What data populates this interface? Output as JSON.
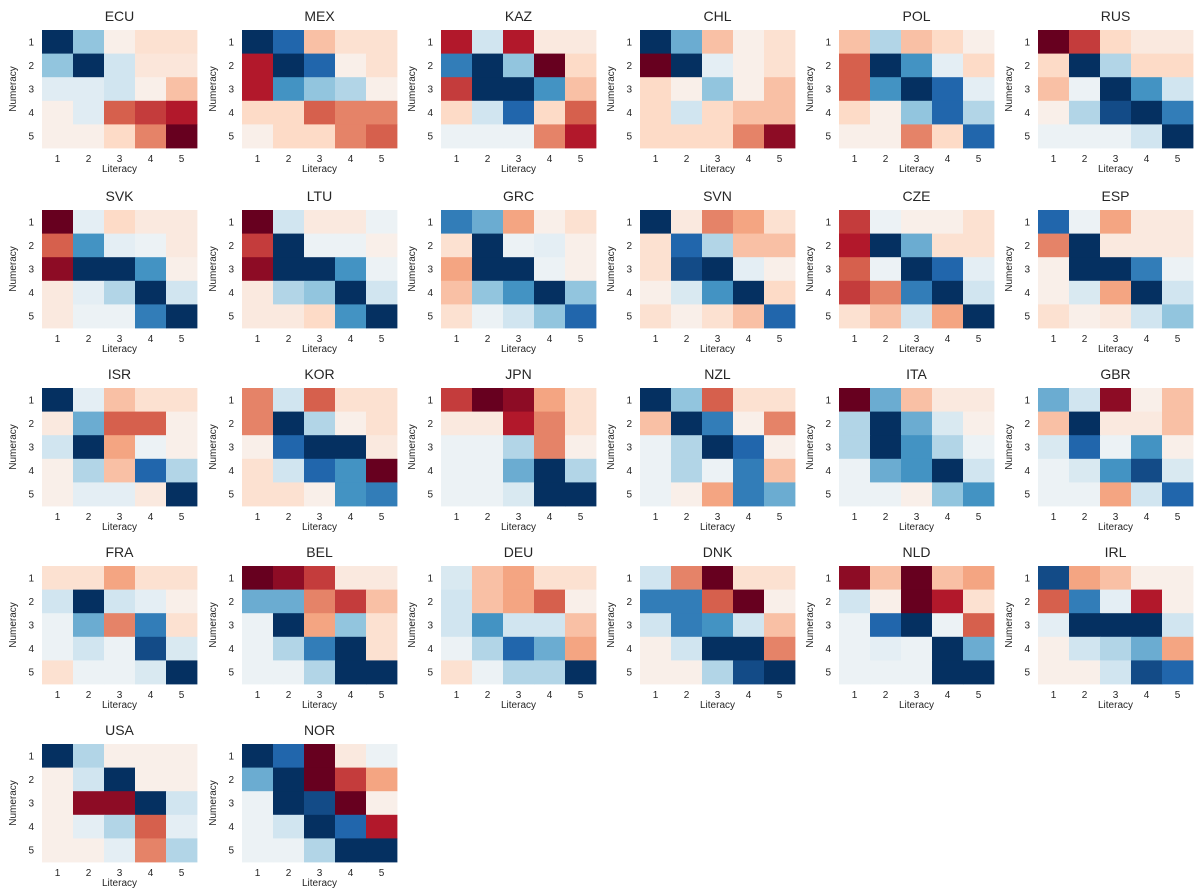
{
  "colors": {
    "colormap": "RdBu_r",
    "ramp": [
      "#67001f",
      "#b2182b",
      "#d6604d",
      "#f4a582",
      "#fddbc7",
      "#f7f7f7",
      "#d1e5f0",
      "#92c5de",
      "#4393c3",
      "#2166ac",
      "#053061"
    ]
  },
  "chart_data": {
    "type": "heatmap",
    "scale": "values on a -5..5 scale; negative = red, positive = blue",
    "xlabel": "Literacy",
    "ylabel": "Numeracy",
    "x_ticks": [
      "1",
      "2",
      "3",
      "4",
      "5"
    ],
    "y_ticks": [
      "1",
      "2",
      "3",
      "4",
      "5"
    ],
    "panels": [
      {
        "title": "ECU",
        "values": [
          [
            5,
            2,
            -0.3,
            -0.8,
            -0.8
          ],
          [
            2,
            5,
            1,
            -0.6,
            -0.6
          ],
          [
            0.6,
            0.6,
            1,
            -0.3,
            -1.5
          ],
          [
            -0.3,
            0.6,
            -3,
            -3.5,
            -4
          ],
          [
            -0.3,
            -0.3,
            -1,
            -2.5,
            -5
          ]
        ]
      },
      {
        "title": "MEX",
        "values": [
          [
            5,
            4,
            -1.5,
            -0.8,
            -0.8
          ],
          [
            -4,
            5,
            4,
            -0.3,
            -0.8
          ],
          [
            -4,
            3,
            2,
            1.5,
            -0.3
          ],
          [
            -1,
            -1,
            -3,
            -2.5,
            -2.5
          ],
          [
            -0.3,
            -1,
            -1,
            -2.5,
            -3
          ]
        ]
      },
      {
        "title": "KAZ",
        "values": [
          [
            -4,
            1,
            -4,
            -0.5,
            -0.5
          ],
          [
            3.5,
            5,
            2,
            -5,
            -1
          ],
          [
            -3.5,
            5,
            5,
            3,
            -1.5
          ],
          [
            -1,
            1,
            4,
            -1,
            -3
          ],
          [
            0.3,
            0.3,
            0.3,
            -2.5,
            -4
          ]
        ]
      },
      {
        "title": "CHL",
        "values": [
          [
            5,
            2.5,
            -1.5,
            -0.3,
            -0.8
          ],
          [
            -5,
            5,
            0.5,
            -0.3,
            -0.8
          ],
          [
            -1,
            -0.3,
            2,
            -0.3,
            -1.5
          ],
          [
            -1,
            1,
            -1,
            -1.5,
            -1.5
          ],
          [
            -1,
            -1,
            -1,
            -2.5,
            -4.5
          ]
        ]
      },
      {
        "title": "POL",
        "values": [
          [
            -1.5,
            1.5,
            -1.5,
            -1,
            -0.3
          ],
          [
            -3,
            5,
            3,
            0.5,
            -1
          ],
          [
            -3,
            3,
            5,
            4,
            0.5
          ],
          [
            -1,
            -0.3,
            2,
            4,
            1.5
          ],
          [
            -0.3,
            -0.3,
            -2.5,
            -1,
            4
          ]
        ]
      },
      {
        "title": "RUS",
        "values": [
          [
            -5,
            -3.5,
            -1,
            -0.5,
            -0.5
          ],
          [
            -1,
            5,
            1.5,
            -1,
            -1
          ],
          [
            -1.5,
            0.3,
            5,
            3,
            1
          ],
          [
            -0.3,
            1.5,
            4.5,
            5,
            3.5
          ],
          [
            0.3,
            0.3,
            0.3,
            1,
            5
          ]
        ]
      },
      {
        "title": "SVK",
        "values": [
          [
            -5,
            0.5,
            -1,
            -0.5,
            -0.5
          ],
          [
            -3,
            3,
            0.5,
            0.3,
            -0.5
          ],
          [
            -4.5,
            5,
            5,
            3,
            -0.3
          ],
          [
            -0.5,
            0.5,
            1.5,
            5,
            1
          ],
          [
            -0.5,
            0.3,
            0.3,
            3.5,
            5
          ]
        ]
      },
      {
        "title": "LTU",
        "values": [
          [
            -5,
            1,
            -0.5,
            -0.5,
            0.3
          ],
          [
            -3.5,
            5,
            0.3,
            0.3,
            -0.3
          ],
          [
            -4.5,
            5,
            5,
            3,
            0.3
          ],
          [
            -0.5,
            1.5,
            2,
            5,
            1
          ],
          [
            -0.5,
            -0.5,
            -1,
            3,
            5
          ]
        ]
      },
      {
        "title": "GRC",
        "values": [
          [
            3.5,
            2.5,
            -2,
            -0.3,
            -0.8
          ],
          [
            -0.8,
            5,
            0.3,
            0.5,
            -0.3
          ],
          [
            -2,
            5,
            5,
            0.3,
            -0.3
          ],
          [
            -1.5,
            2,
            3,
            5,
            2
          ],
          [
            -0.8,
            0.3,
            1,
            2,
            4
          ]
        ]
      },
      {
        "title": "SVN",
        "values": [
          [
            5,
            -0.5,
            -2.5,
            -2,
            -0.8
          ],
          [
            -0.8,
            4,
            1.5,
            -1.5,
            -1.5
          ],
          [
            -0.8,
            4.5,
            5,
            0.5,
            -0.3
          ],
          [
            -0.3,
            0.8,
            3,
            5,
            -1
          ],
          [
            -0.8,
            -0.3,
            -0.8,
            -1.5,
            4
          ]
        ]
      },
      {
        "title": "CZE",
        "values": [
          [
            -3.5,
            0.3,
            -0.3,
            -0.3,
            -0.8
          ],
          [
            -4,
            5,
            2.5,
            -0.8,
            -0.8
          ],
          [
            -3,
            0.3,
            5,
            4,
            0.5
          ],
          [
            -3.5,
            -2.5,
            3.5,
            5,
            1
          ],
          [
            -0.8,
            -1.5,
            1,
            -2,
            5
          ]
        ]
      },
      {
        "title": "ESP",
        "values": [
          [
            4,
            0.3,
            -2,
            -0.5,
            -0.5
          ],
          [
            -2.5,
            5,
            -0.5,
            -0.5,
            -0.5
          ],
          [
            -0.3,
            5,
            5,
            3.5,
            0.3
          ],
          [
            -0.3,
            0.8,
            -2,
            5,
            1
          ],
          [
            -0.8,
            -0.3,
            -0.5,
            1,
            2
          ]
        ]
      },
      {
        "title": "ISR",
        "values": [
          [
            5,
            0.5,
            -1.5,
            -0.8,
            -0.8
          ],
          [
            -0.5,
            2.5,
            -3,
            -3,
            -0.3
          ],
          [
            1,
            5,
            -2,
            0.3,
            -0.3
          ],
          [
            -0.3,
            1.5,
            -1.5,
            4,
            1.5
          ],
          [
            -0.3,
            0.5,
            0.5,
            -0.5,
            5
          ]
        ]
      },
      {
        "title": "KOR",
        "values": [
          [
            -2.5,
            1,
            -3,
            -0.8,
            -0.8
          ],
          [
            -2.5,
            5,
            1.5,
            -0.3,
            -0.8
          ],
          [
            -0.3,
            4,
            5,
            5,
            -0.5
          ],
          [
            -0.8,
            1,
            4,
            3,
            -5
          ],
          [
            -0.8,
            -0.8,
            -0.3,
            3,
            3.5
          ]
        ]
      },
      {
        "title": "JPN",
        "values": [
          [
            -3.5,
            -5,
            -4.5,
            -2,
            -0.8
          ],
          [
            -0.5,
            -0.5,
            -4,
            -2.5,
            -0.8
          ],
          [
            0.3,
            0.3,
            1.5,
            -2.5,
            -0.3
          ],
          [
            0.3,
            0.3,
            2.5,
            5,
            1.5
          ],
          [
            0.3,
            0.3,
            0.8,
            5,
            5
          ]
        ]
      },
      {
        "title": "NZL",
        "values": [
          [
            5,
            2,
            -3,
            -0.8,
            -0.8
          ],
          [
            -1.5,
            5,
            3.5,
            -0.3,
            -2.5
          ],
          [
            0.3,
            1.5,
            5,
            4,
            -0.3
          ],
          [
            0.3,
            1.5,
            0.3,
            3.5,
            -1.5
          ],
          [
            0.3,
            -0.3,
            -2,
            3.5,
            2.5
          ]
        ]
      },
      {
        "title": "ITA",
        "values": [
          [
            -5,
            2.5,
            -1.5,
            -0.5,
            -0.5
          ],
          [
            1.5,
            5,
            2.5,
            0.8,
            -0.3
          ],
          [
            1.5,
            5,
            3,
            1.5,
            0.3
          ],
          [
            0.3,
            2.5,
            3,
            5,
            1
          ],
          [
            0.3,
            0.3,
            -0.3,
            2,
            3
          ]
        ]
      },
      {
        "title": "GBR",
        "values": [
          [
            2.5,
            1,
            -4.5,
            -0.3,
            -1.5
          ],
          [
            -1.5,
            5,
            -0.5,
            -0.5,
            -1.5
          ],
          [
            0.8,
            4,
            0.3,
            3,
            -0.3
          ],
          [
            0.3,
            0.8,
            3,
            4.5,
            0.8
          ],
          [
            0.3,
            0.3,
            -2,
            1,
            4
          ]
        ]
      },
      {
        "title": "FRA",
        "values": [
          [
            -0.8,
            -0.8,
            -2,
            -0.8,
            -0.8
          ],
          [
            1,
            5,
            1,
            0.5,
            -0.3
          ],
          [
            0.3,
            2.5,
            -2.5,
            3.5,
            -0.8
          ],
          [
            0.3,
            1,
            0.3,
            4.5,
            0.8
          ],
          [
            -0.8,
            0.3,
            0.3,
            0.8,
            5
          ]
        ]
      },
      {
        "title": "BEL",
        "values": [
          [
            -5,
            -4.5,
            -3.5,
            -0.5,
            -0.5
          ],
          [
            2.5,
            2.5,
            -2.5,
            -3.5,
            -1.5
          ],
          [
            0.3,
            5,
            -2,
            2,
            -0.8
          ],
          [
            0.3,
            1.5,
            3.5,
            5,
            -0.8
          ],
          [
            0.3,
            0.3,
            1.5,
            5,
            5
          ]
        ]
      },
      {
        "title": "DEU",
        "values": [
          [
            0.8,
            -1.5,
            -2,
            -0.8,
            -0.8
          ],
          [
            1,
            -1.5,
            -2,
            -3,
            -0.3
          ],
          [
            1,
            3,
            1,
            1,
            -1.5
          ],
          [
            0.3,
            1.5,
            4,
            2.5,
            -2
          ],
          [
            -0.8,
            0.3,
            1.5,
            1.5,
            5
          ]
        ]
      },
      {
        "title": "DNK",
        "values": [
          [
            1,
            -2.5,
            -5,
            -0.8,
            -0.8
          ],
          [
            3.5,
            3.5,
            -3,
            -5,
            -0.3
          ],
          [
            1,
            3.5,
            3,
            1,
            -1.5
          ],
          [
            -0.3,
            1,
            5,
            5,
            -2.5
          ],
          [
            -0.3,
            -0.3,
            1.5,
            4.5,
            5
          ]
        ]
      },
      {
        "title": "NLD",
        "values": [
          [
            -4.5,
            -1.5,
            -5,
            -1.5,
            -2
          ],
          [
            1,
            -0.3,
            -5,
            -4,
            -0.8
          ],
          [
            0.3,
            4,
            5,
            0.3,
            -3
          ],
          [
            0.3,
            0.5,
            0.3,
            5,
            2.5
          ],
          [
            0.3,
            0.3,
            0.3,
            5,
            5
          ]
        ]
      },
      {
        "title": "IRL",
        "values": [
          [
            4.5,
            -2,
            -1.5,
            -0.3,
            -0.3
          ],
          [
            -3,
            3.5,
            0.5,
            -4,
            -0.3
          ],
          [
            0.5,
            5,
            5,
            5,
            1
          ],
          [
            -0.3,
            1,
            1.5,
            2.5,
            -2
          ],
          [
            -0.3,
            -0.3,
            1,
            4.5,
            4
          ]
        ]
      },
      {
        "title": "USA",
        "values": [
          [
            5,
            1.5,
            -0.3,
            -0.3,
            -0.3
          ],
          [
            -0.3,
            1,
            5,
            -0.3,
            -0.3
          ],
          [
            -0.3,
            -4.5,
            -4.5,
            5,
            1
          ],
          [
            -0.3,
            0.5,
            1.5,
            -3,
            0.5
          ],
          [
            -0.3,
            -0.3,
            0.5,
            -2.5,
            1.5
          ]
        ]
      },
      {
        "title": "NOR",
        "values": [
          [
            5,
            4,
            -5,
            -0.5,
            0.3
          ],
          [
            2.5,
            5,
            -5,
            -3.5,
            -2
          ],
          [
            0.3,
            5,
            4.5,
            -5,
            -0.3
          ],
          [
            0.3,
            1,
            5,
            4,
            -4
          ],
          [
            0.3,
            0.3,
            1.5,
            5,
            5
          ]
        ]
      }
    ]
  }
}
